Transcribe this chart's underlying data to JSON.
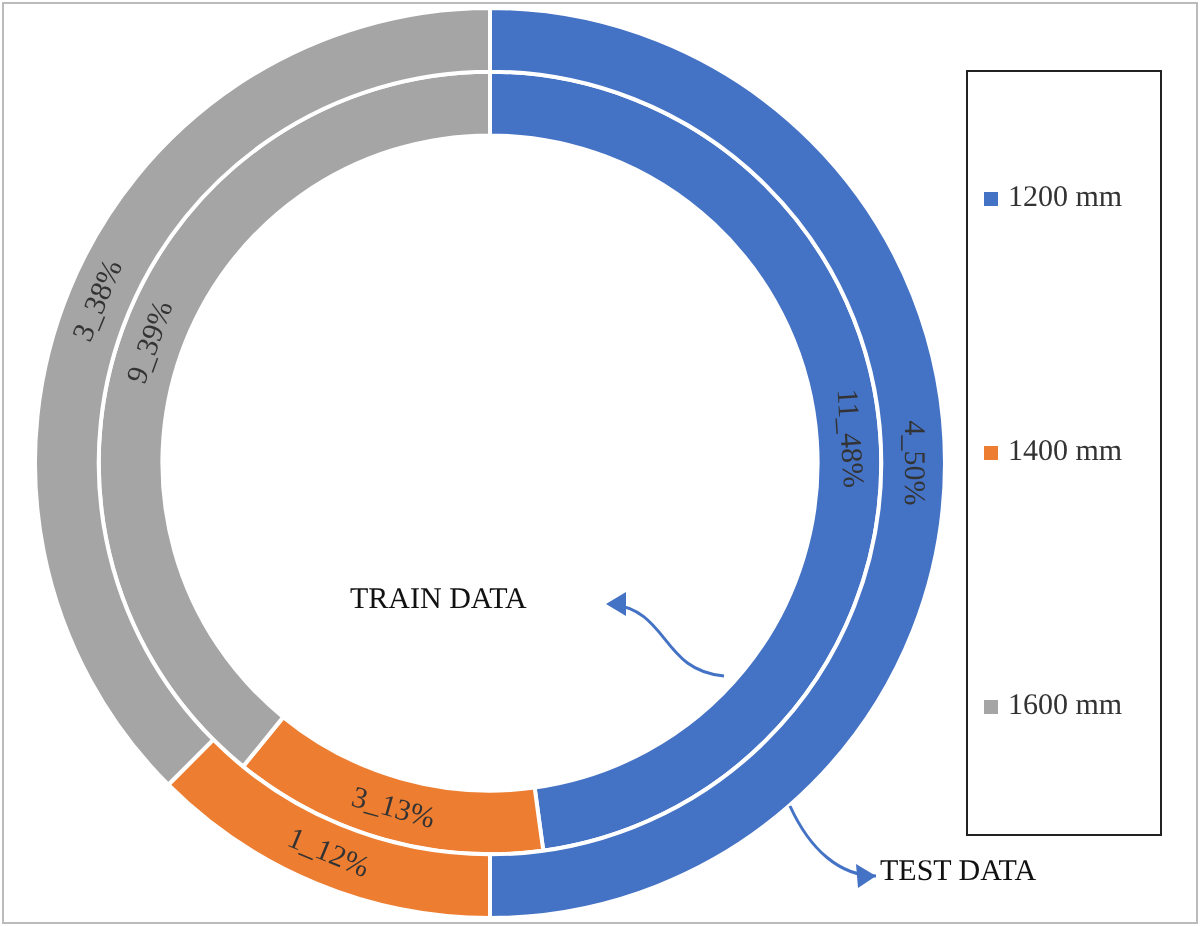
{
  "chart_data": {
    "type": "donut",
    "categories": [
      "1200 mm",
      "1400 mm",
      "1600 mm"
    ],
    "colors": [
      "#4472c4",
      "#ed7d31",
      "#a5a5a5"
    ],
    "legend": "right",
    "series": [
      {
        "name": "TEST DATA",
        "values": [
          4,
          1,
          3
        ],
        "value_labels": [
          "4_50%",
          "1_12%",
          "3_38%"
        ]
      },
      {
        "name": "TRAIN DATA",
        "values": [
          11,
          3,
          9
        ],
        "value_labels": [
          "11_48%",
          "3_13%",
          "9_39%"
        ]
      }
    ]
  }
}
